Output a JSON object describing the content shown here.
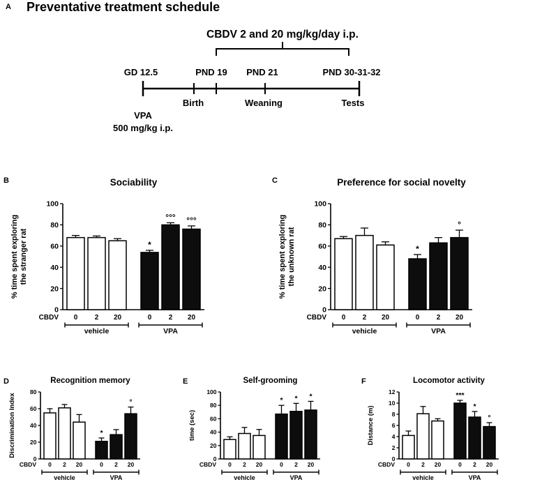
{
  "panel_a": {
    "label": "A",
    "title": "Preventative treatment schedule",
    "treatment_label": "CBDV 2 and 20 mg/kg/day i.p.",
    "timepoints_above": [
      {
        "text": "GD 12.5"
      },
      {
        "text": "PND 19"
      },
      {
        "text": "PND 21"
      },
      {
        "text": "PND 30-31-32"
      }
    ],
    "events_below": [
      {
        "text": "Birth"
      },
      {
        "text": "Weaning"
      },
      {
        "text": "Tests"
      }
    ],
    "vpa_line1": "VPA",
    "vpa_line2": "500 mg/kg i.p."
  },
  "chart_data": [
    {
      "panel": "B",
      "type": "bar",
      "title": "Sociability",
      "ylabel": "% time spent exploring\nthe stranger rat",
      "xlabel": "CBDV",
      "ylim": [
        0,
        100
      ],
      "yticks": [
        0,
        20,
        40,
        60,
        80,
        100
      ],
      "categories": [
        "0",
        "2",
        "20",
        "0",
        "2",
        "20"
      ],
      "group_labels": [
        "vehicle",
        "VPA"
      ],
      "bar_colors": [
        "white",
        "white",
        "white",
        "black",
        "black",
        "black"
      ],
      "values": [
        68,
        68,
        65,
        54,
        80,
        76
      ],
      "errors": [
        2,
        1.5,
        2,
        2,
        2,
        3
      ],
      "annotations": [
        "",
        "",
        "",
        "*",
        "°°°",
        "°°°"
      ],
      "grid": false,
      "legend_position": "none"
    },
    {
      "panel": "C",
      "type": "bar",
      "title": "Preference for social novelty",
      "ylabel": "% time spent exploring\nthe unknown rat",
      "xlabel": "CBDV",
      "ylim": [
        0,
        100
      ],
      "yticks": [
        0,
        20,
        40,
        60,
        80,
        100
      ],
      "categories": [
        "0",
        "2",
        "20",
        "0",
        "2",
        "20"
      ],
      "group_labels": [
        "vehicle",
        "VPA"
      ],
      "bar_colors": [
        "white",
        "white",
        "white",
        "black",
        "black",
        "black"
      ],
      "values": [
        67,
        70,
        61,
        48,
        63,
        68
      ],
      "errors": [
        2,
        7,
        3,
        4,
        5,
        7
      ],
      "annotations": [
        "",
        "",
        "",
        "*",
        "",
        "°"
      ],
      "grid": false,
      "legend_position": "none"
    },
    {
      "panel": "D",
      "type": "bar",
      "title": "Recognition memory",
      "ylabel": "Discrimination Index",
      "xlabel": "CBDV",
      "ylim": [
        0,
        80
      ],
      "yticks": [
        0,
        20,
        40,
        60,
        80
      ],
      "categories": [
        "0",
        "2",
        "20",
        "0",
        "2",
        "20"
      ],
      "group_labels": [
        "vehicle",
        "VPA"
      ],
      "bar_colors": [
        "white",
        "white",
        "white",
        "black",
        "black",
        "black"
      ],
      "values": [
        55,
        61,
        44,
        21,
        29,
        54
      ],
      "errors": [
        5,
        4,
        9,
        4,
        6,
        8
      ],
      "annotations": [
        "",
        "",
        "",
        "*",
        "",
        "°"
      ],
      "grid": false,
      "legend_position": "none"
    },
    {
      "panel": "E",
      "type": "bar",
      "title": "Self-grooming",
      "ylabel": "time (sec)",
      "xlabel": "CBDV",
      "ylim": [
        0,
        100
      ],
      "yticks": [
        0,
        20,
        40,
        60,
        80,
        100
      ],
      "categories": [
        "0",
        "2",
        "20",
        "0",
        "2",
        "20"
      ],
      "group_labels": [
        "vehicle",
        "VPA"
      ],
      "bar_colors": [
        "white",
        "white",
        "white",
        "black",
        "black",
        "black"
      ],
      "values": [
        29,
        38,
        35,
        67,
        71,
        73
      ],
      "errors": [
        4,
        9,
        9,
        13,
        12,
        13
      ],
      "annotations": [
        "",
        "",
        "",
        "*",
        "*",
        "*"
      ],
      "grid": false,
      "legend_position": "none"
    },
    {
      "panel": "F",
      "type": "bar",
      "title": "Locomotor activity",
      "ylabel": "Distance (m)",
      "xlabel": "CBDV",
      "ylim": [
        0,
        12
      ],
      "yticks": [
        0,
        2,
        4,
        6,
        8,
        10,
        12
      ],
      "categories": [
        "0",
        "2",
        "20",
        "0",
        "2",
        "20"
      ],
      "group_labels": [
        "vehicle",
        "VPA"
      ],
      "bar_colors": [
        "white",
        "white",
        "white",
        "black",
        "black",
        "black"
      ],
      "values": [
        4.2,
        8.1,
        6.8,
        10,
        7.5,
        5.8
      ],
      "errors": [
        0.8,
        1.3,
        0.4,
        0.5,
        1,
        0.7
      ],
      "annotations": [
        "",
        "",
        "",
        "***",
        "*",
        "°"
      ],
      "grid": false,
      "legend_position": "none"
    }
  ],
  "colors": {
    "bar_fill_vehicle": "#ffffff",
    "bar_fill_vpa": "#0d0d0d",
    "axis": "#000000",
    "background": "#ffffff"
  }
}
